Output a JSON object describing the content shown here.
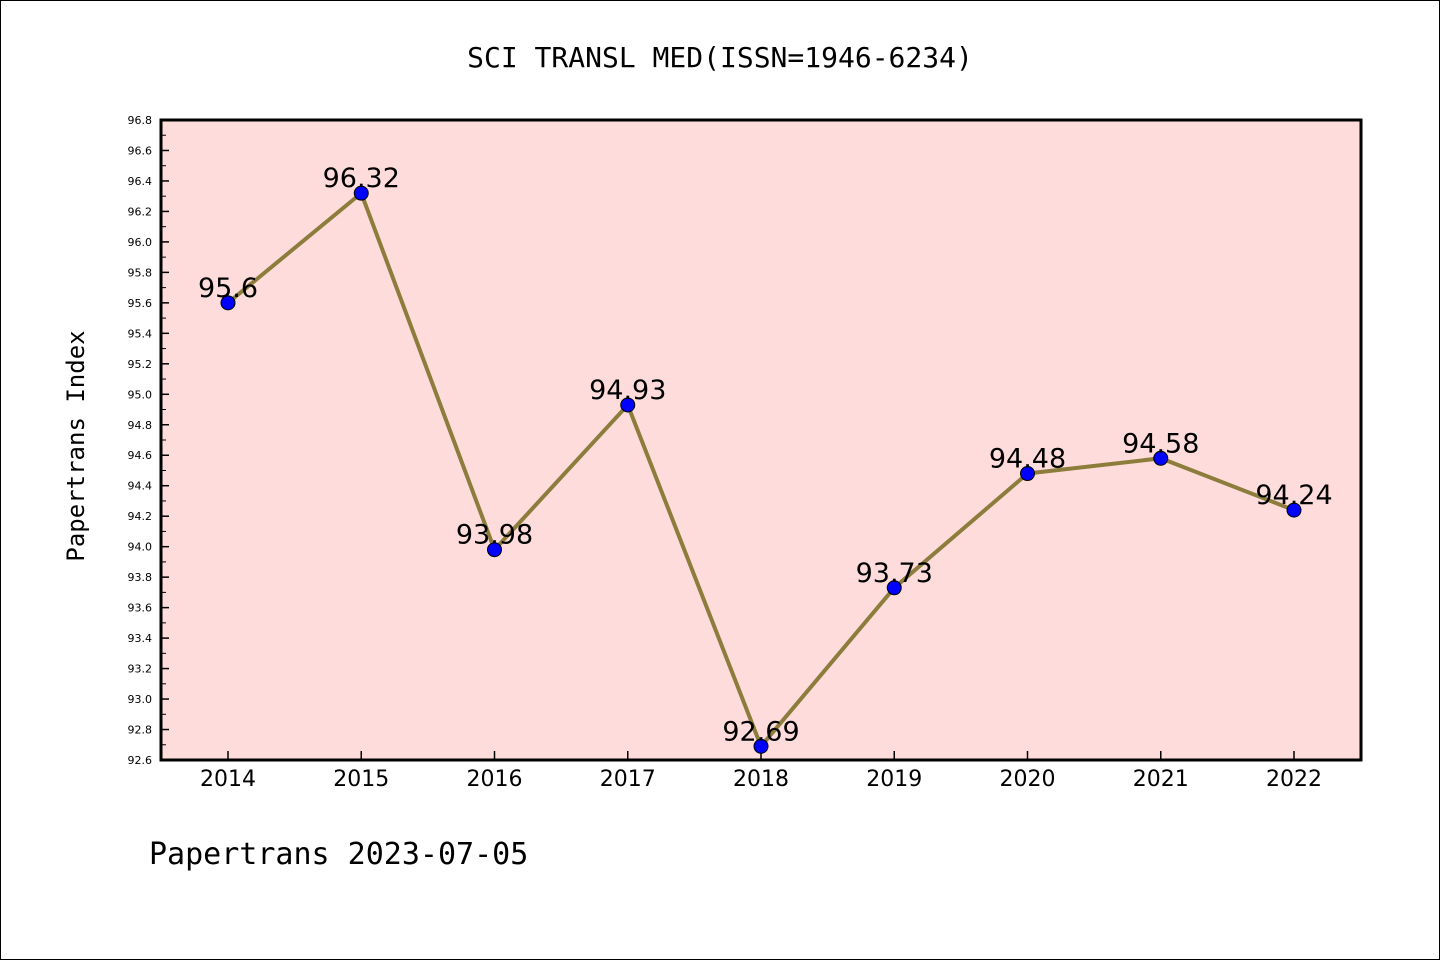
{
  "chart_data": {
    "type": "line",
    "title": "SCI TRANSL MED(ISSN=1946-6234)",
    "xlabel": "",
    "ylabel": "Papertrans Index",
    "categories": [
      "2014",
      "2015",
      "2016",
      "2017",
      "2018",
      "2019",
      "2020",
      "2021",
      "2022"
    ],
    "series": [
      {
        "values": [
          95.6,
          96.32,
          93.98,
          94.93,
          92.69,
          93.73,
          94.48,
          94.58,
          94.24
        ],
        "labels": [
          "95.6",
          "96.32",
          "93.98",
          "94.93",
          "92.69",
          "93.73",
          "94.48",
          "94.58",
          "94.24"
        ]
      }
    ],
    "ylim": [
      92.6,
      96.8
    ],
    "yticks": [
      "92.6",
      "92.8",
      "93.0",
      "93.2",
      "93.4",
      "93.6",
      "93.8",
      "94.0",
      "94.2",
      "94.4",
      "94.6",
      "94.8",
      "95.0",
      "95.2",
      "95.4",
      "95.6",
      "95.8",
      "96.0",
      "96.2",
      "96.4",
      "96.6",
      "96.8"
    ],
    "grid": false,
    "colors": {
      "plot_background": "#ffdcdc",
      "line": "#8c7d3c",
      "marker": "#0000ff"
    }
  },
  "footer": {
    "credit": "Papertrans 2023-07-05"
  }
}
